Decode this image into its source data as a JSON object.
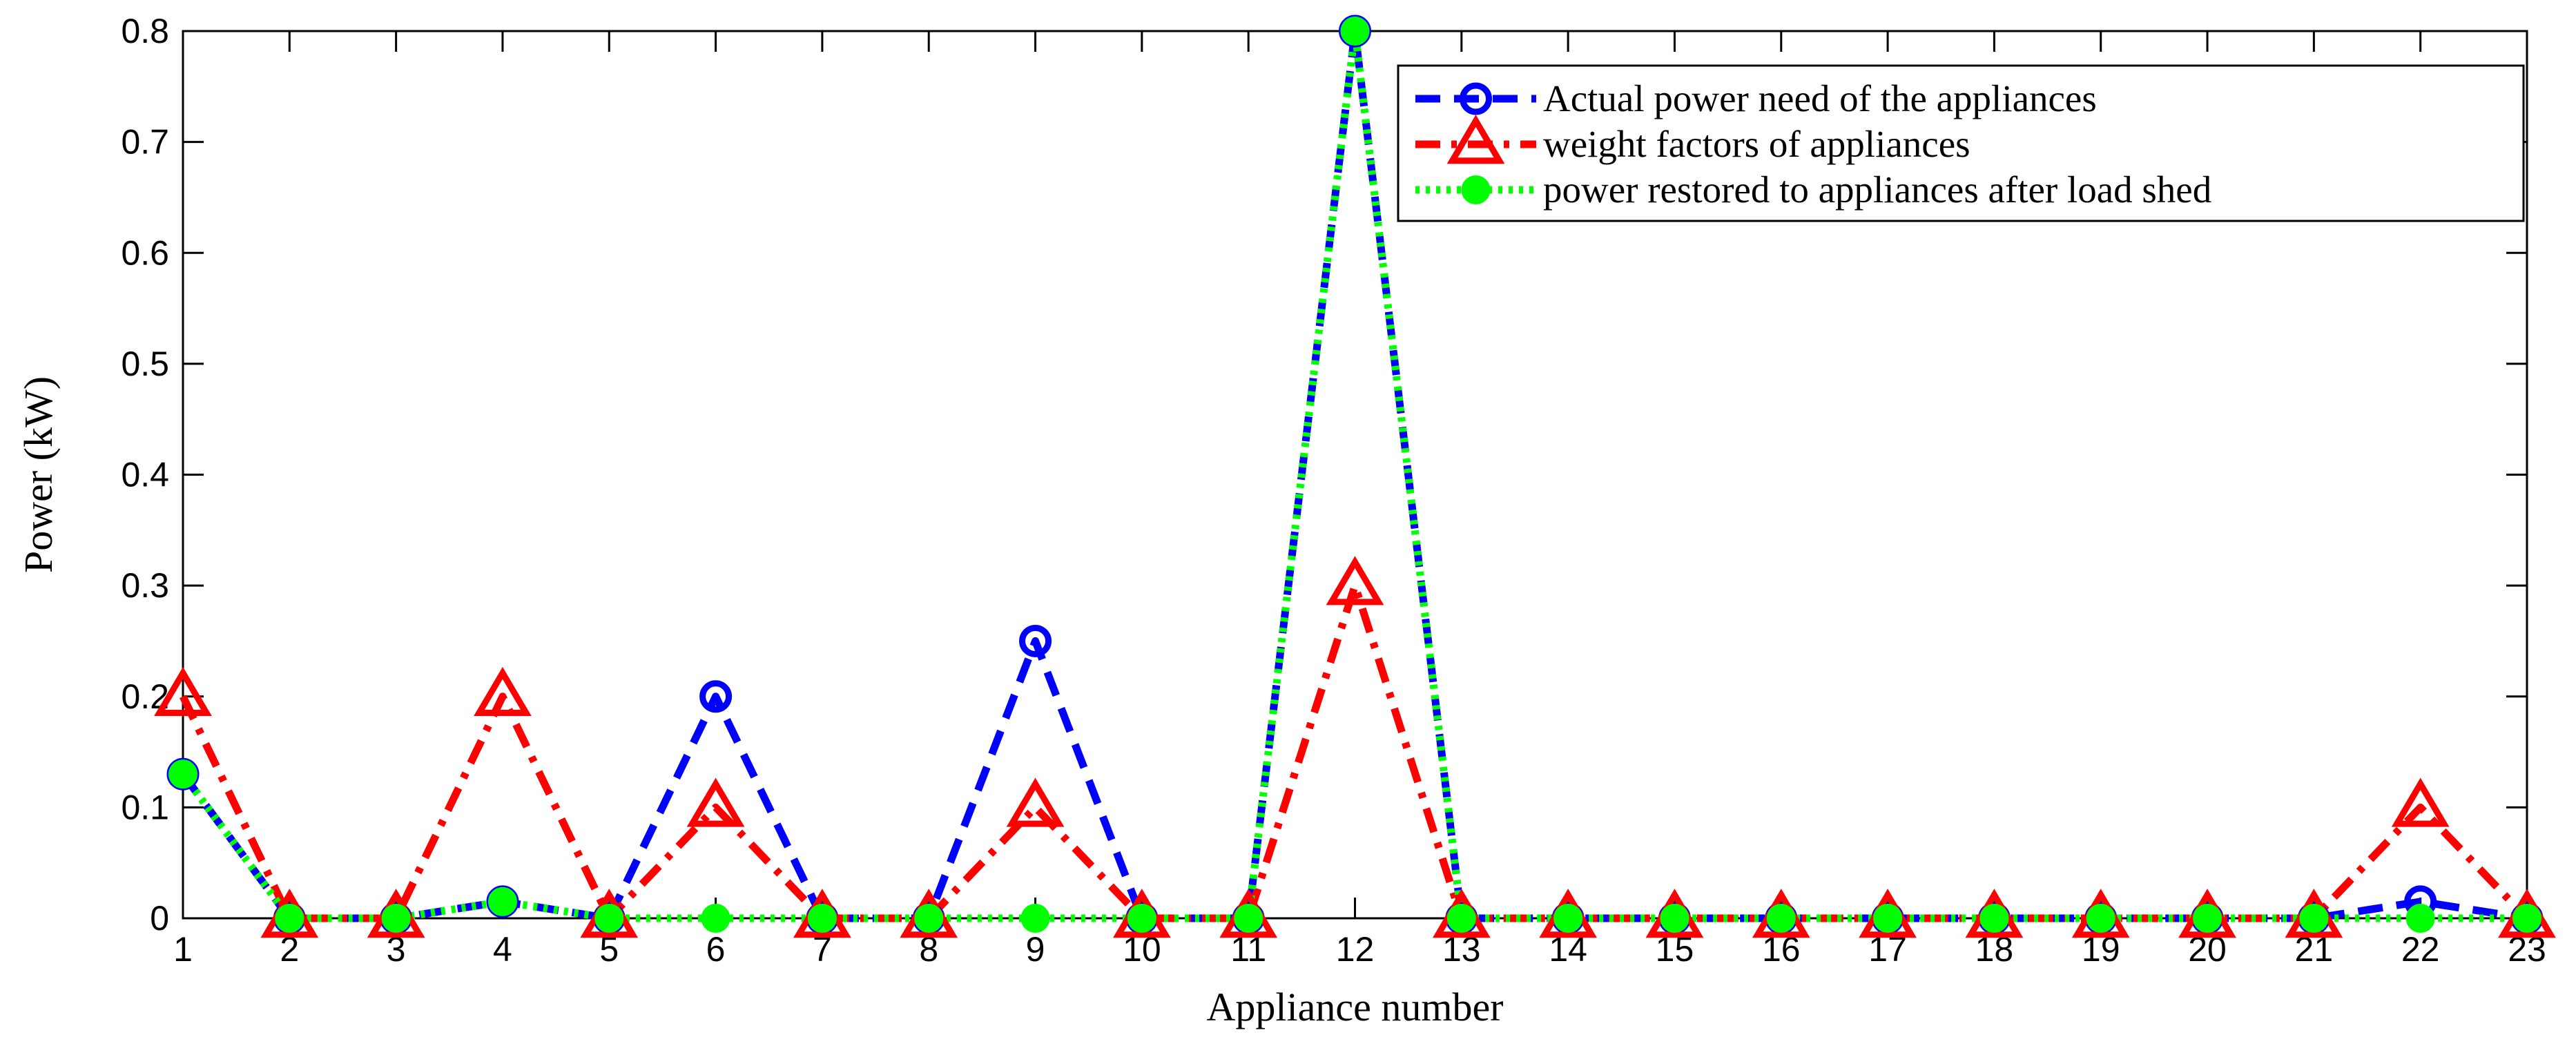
{
  "chart_data": {
    "type": "line",
    "title": "",
    "xlabel": "Appliance number",
    "ylabel": "Power (kW)",
    "xlim": [
      1,
      23
    ],
    "ylim": [
      0,
      0.8
    ],
    "x": [
      1,
      2,
      3,
      4,
      5,
      6,
      7,
      8,
      9,
      10,
      11,
      12,
      13,
      14,
      15,
      16,
      17,
      18,
      19,
      20,
      21,
      22,
      23
    ],
    "x_tick_labels": [
      "1",
      "2",
      "3",
      "4",
      "5",
      "6",
      "7",
      "8",
      "9",
      "10",
      "11",
      "12",
      "13",
      "14",
      "15",
      "16",
      "17",
      "18",
      "19",
      "20",
      "21",
      "22",
      "23"
    ],
    "y_ticks": [
      0,
      0.1,
      0.2,
      0.3,
      0.4,
      0.5,
      0.6,
      0.7,
      0.8
    ],
    "y_tick_labels": [
      "0",
      "0.1",
      "0.2",
      "0.3",
      "0.4",
      "0.5",
      "0.6",
      "0.7",
      "0.8"
    ],
    "grid": false,
    "legend_position": "top-right",
    "series": [
      {
        "name": "Actual power need of the appliances",
        "color": "#0000ff",
        "line_style": "dashed",
        "marker": "circle",
        "values": [
          0.13,
          0,
          0,
          0.015,
          0,
          0.2,
          0,
          0,
          0.25,
          0,
          0,
          0.8,
          0,
          0,
          0,
          0,
          0,
          0,
          0,
          0,
          0,
          0.015,
          0
        ]
      },
      {
        "name": "weight factors of appliances",
        "color": "#ff0000",
        "line_style": "dashdot",
        "marker": "triangle",
        "values": [
          0.2,
          0,
          0,
          0.2,
          0,
          0.1,
          0,
          0,
          0.1,
          0,
          0,
          0.3,
          0,
          0,
          0,
          0,
          0,
          0,
          0,
          0,
          0,
          0.1,
          0
        ]
      },
      {
        "name": "power restored to appliances after load shed",
        "color": "#00ff00",
        "line_style": "dotted",
        "marker": "filled-circle",
        "values": [
          0.13,
          0,
          0,
          0.015,
          0,
          0,
          0,
          0,
          0,
          0,
          0,
          0.8,
          0,
          0,
          0,
          0,
          0,
          0,
          0,
          0,
          0,
          0,
          0
        ]
      }
    ]
  }
}
